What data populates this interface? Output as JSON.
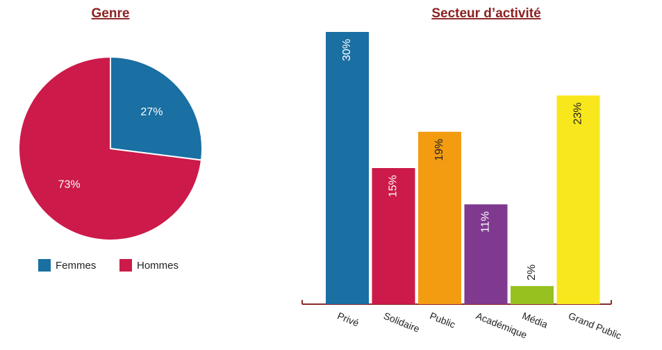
{
  "chart_data": [
    {
      "type": "pie",
      "title": "Genre",
      "categories": [
        "Femmes",
        "Hommes"
      ],
      "values": [
        27,
        73
      ],
      "value_labels": [
        "27%",
        "73%"
      ],
      "colors": [
        "#1a6fa3",
        "#cc1a4a"
      ],
      "legend": "bottom"
    },
    {
      "type": "bar",
      "title": "Secteur d’activité",
      "categories": [
        "Privé",
        "Solidaire",
        "Public",
        "Académique",
        "Média",
        "Grand Public"
      ],
      "values": [
        30,
        15,
        19,
        11,
        2,
        23
      ],
      "value_labels": [
        "30%",
        "15%",
        "19%",
        "11%",
        "2%",
        "23%"
      ],
      "colors": [
        "#1a6fa3",
        "#cc1a4a",
        "#f39c12",
        "#7f3a8f",
        "#97c11f",
        "#f8e71c"
      ]
    }
  ]
}
